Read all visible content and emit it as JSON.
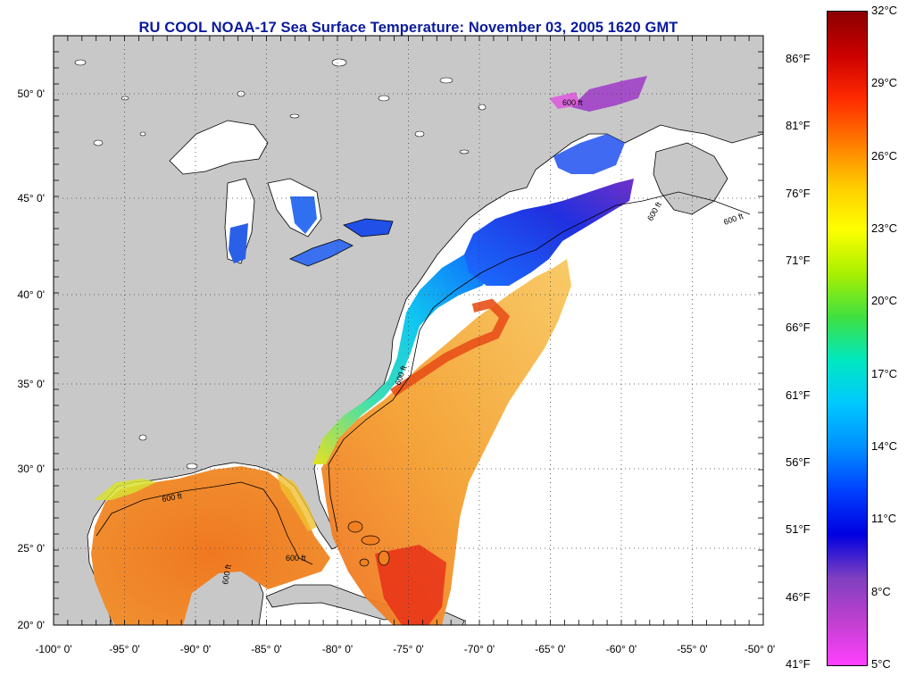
{
  "title": "RU COOL  NOAA-17  Sea Surface Temperature:  November 03, 2005 1620 GMT",
  "map": {
    "lon_range": [
      -100,
      -50
    ],
    "lat_range": [
      20,
      52.5
    ],
    "lon_ticks": [
      "-100° 0'",
      "-95° 0'",
      "-90° 0'",
      "-85° 0'",
      "-80° 0'",
      "-75° 0'",
      "-70° 0'",
      "-65° 0'",
      "-60° 0'",
      "-55° 0'",
      "-50° 0'"
    ],
    "lat_ticks": [
      "20° 0'",
      "25° 0'",
      "30° 0'",
      "35° 0'",
      "40° 0'",
      "45° 0'",
      "50° 0'"
    ],
    "grid": true,
    "land_color": "#c8c8c8",
    "isobath_labels": [
      "600 ft",
      "600 ft",
      "600 ft",
      "600 ft",
      "600 ft",
      "600 ft",
      "600 ft"
    ]
  },
  "colorbar": {
    "celsius_labels": [
      "32°C",
      "29°C",
      "26°C",
      "23°C",
      "20°C",
      "17°C",
      "14°C",
      "11°C",
      "8°C",
      "5°C"
    ],
    "fahrenheit_labels": [
      "86°F",
      "81°F",
      "76°F",
      "71°F",
      "66°F",
      "61°F",
      "56°F",
      "51°F",
      "46°F",
      "41°F"
    ],
    "range_c": [
      5,
      32
    ],
    "colors_top_to_bottom": [
      "#8b0000",
      "#cc0000",
      "#ff2a00",
      "#ff7a00",
      "#ffcc00",
      "#ffff00",
      "#aaf000",
      "#40e040",
      "#00e8c0",
      "#00c8ff",
      "#0090ff",
      "#0040ff",
      "#0000e0",
      "#8040c0",
      "#c040d0",
      "#ff40ff"
    ]
  }
}
